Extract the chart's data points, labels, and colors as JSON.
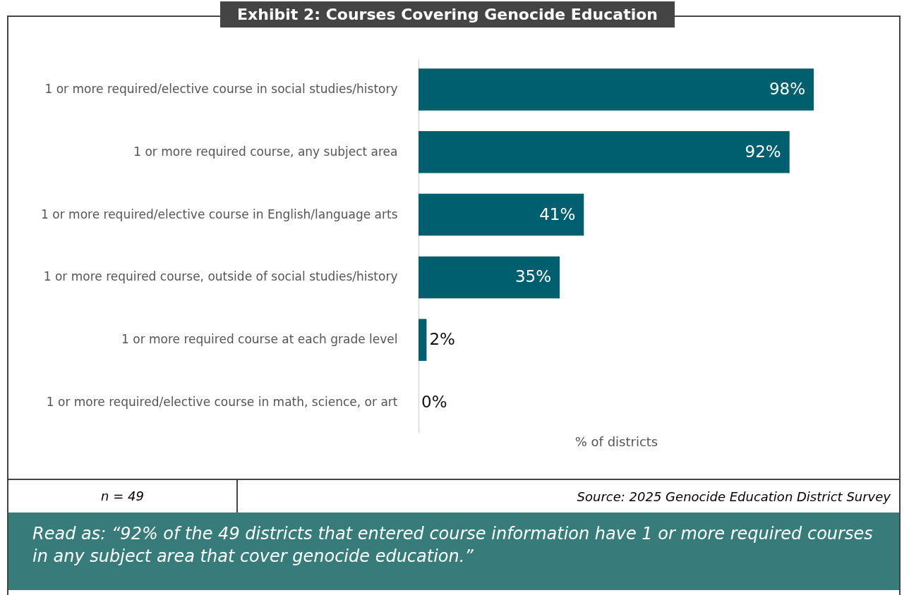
{
  "chart_data": {
    "type": "bar",
    "orientation": "horizontal",
    "title": "Exhibit 2: Courses Covering Genocide Education",
    "xlabel": "% of districts",
    "categories": [
      "1 or more required/elective course in social studies/history",
      "1 or more required course, any subject area",
      "1 or more required/elective course in English/language arts",
      "1 or more required course, outside of social studies/history",
      "1 or more required course at each grade level",
      "1 or more required/elective course in math, science, or art"
    ],
    "values": [
      98,
      92,
      41,
      35,
      2,
      0
    ],
    "value_labels": [
      "98%",
      "92%",
      "41%",
      "35%",
      "2%",
      "0%"
    ],
    "color": "#005f6e",
    "tick_labels": "y",
    "annotations": [
      "n = 49",
      "Source: 2025 Genocide Education District Survey",
      "Read as: “92% of the 49 districts that entered course information have 1 or more required courses in any subject area that cover genocide education.”"
    ]
  }
}
